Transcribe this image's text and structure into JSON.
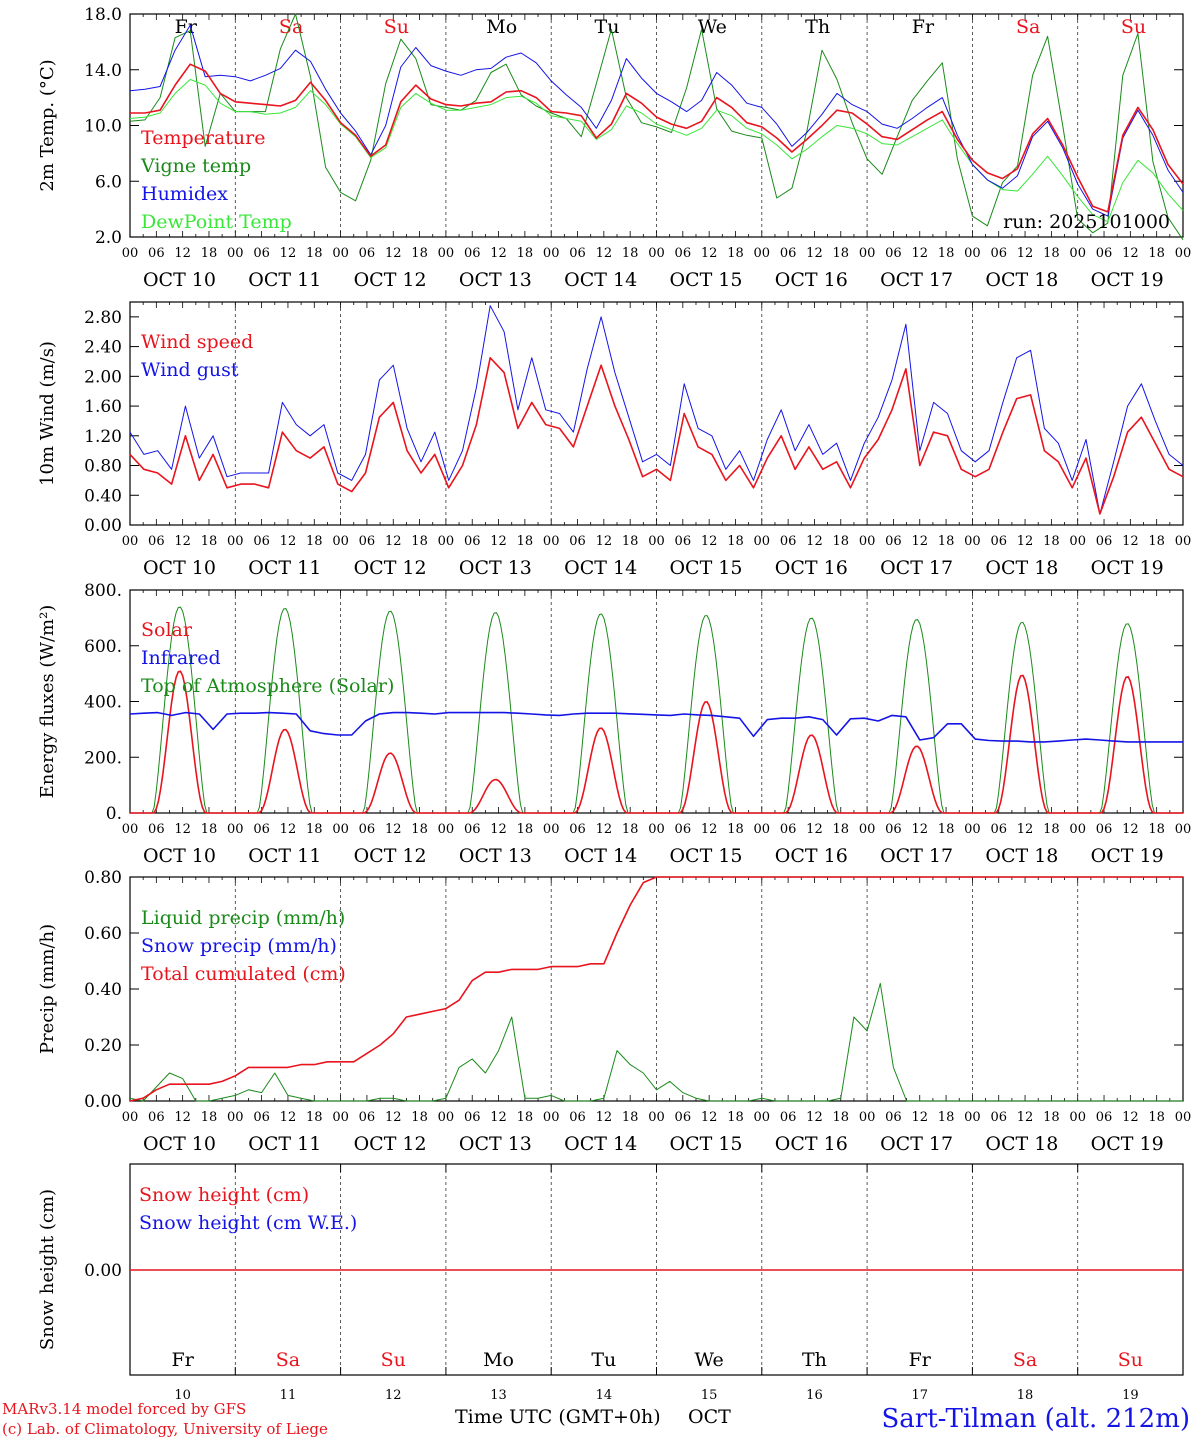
{
  "colors": {
    "red": "#e8141e",
    "green": "#1a8a1a",
    "blue": "#1414e6",
    "lime": "#39e639",
    "grey": "#555555"
  },
  "days": {
    "weekday_top": [
      "Fr",
      "Sa",
      "Su",
      "Mo",
      "Tu",
      "We",
      "Th",
      "Fr",
      "Sa",
      "Su"
    ],
    "weekend": [
      false,
      true,
      true,
      false,
      false,
      false,
      false,
      false,
      true,
      true
    ],
    "dates": [
      "OCT 10",
      "OCT 11",
      "OCT 12",
      "OCT 13",
      "OCT 14",
      "OCT 15",
      "OCT 16",
      "OCT 17",
      "OCT 18",
      "OCT 19"
    ],
    "day_numbers": [
      "10",
      "11",
      "12",
      "13",
      "14",
      "15",
      "16",
      "17",
      "18",
      "19"
    ],
    "hours": [
      "00",
      "06",
      "12",
      "18"
    ],
    "end_hour": "00"
  },
  "footer": {
    "credit1": "MARv3.14 model forced by GFS",
    "credit2": "(c) Lab. of Climatology, University of Liege",
    "xlabel": "Time UTC (GMT+0h)",
    "month": "OCT",
    "station": "Sart-Tilman (alt. 212m)"
  },
  "chart_data": [
    {
      "type": "line",
      "ylabel": "2m Temp. (°C)",
      "ylim": [
        2.0,
        18.0
      ],
      "yticks": [
        "2.0",
        "6.0",
        "10.0",
        "14.0",
        "18.0"
      ],
      "annotation": "run: 2025101000",
      "x_unit": "hours from Oct 10 00 UTC, 3-hourly, 0..240",
      "series": [
        {
          "name": "Temperature",
          "color": "red",
          "values": [
            10.9,
            10.9,
            11.1,
            12.9,
            14.4,
            13.9,
            12.3,
            11.7,
            11.6,
            11.5,
            11.4,
            11.8,
            13.1,
            11.8,
            10.2,
            9.3,
            7.8,
            8.6,
            11.7,
            12.9,
            11.9,
            11.5,
            11.4,
            11.6,
            11.7,
            12.4,
            12.5,
            12.0,
            11.0,
            10.9,
            10.7,
            9.1,
            10.1,
            12.3,
            11.6,
            10.6,
            10.1,
            9.8,
            10.3,
            12.0,
            11.3,
            10.2,
            9.9,
            9.1,
            8.1,
            9.0,
            10.0,
            11.1,
            10.9,
            10.1,
            9.2,
            9.0,
            9.7,
            10.4,
            11.0,
            9.0,
            7.5,
            6.6,
            6.2,
            6.9,
            9.4,
            10.5,
            8.6,
            6.3,
            4.2,
            3.8,
            9.3,
            11.3,
            9.7,
            7.2,
            5.8
          ]
        },
        {
          "name": "Vigne temp",
          "color": "green",
          "values": [
            10.3,
            10.4,
            12.0,
            16.3,
            16.8,
            8.5,
            12.3,
            11.0,
            11.0,
            11.0,
            15.5,
            18.0,
            13.5,
            7.0,
            5.2,
            4.6,
            7.5,
            13.0,
            16.2,
            14.8,
            11.5,
            11.3,
            11.1,
            11.8,
            13.8,
            14.4,
            12.2,
            11.4,
            10.9,
            10.5,
            9.2,
            13.0,
            16.9,
            12.0,
            10.2,
            9.9,
            9.5,
            12.7,
            16.9,
            11.2,
            9.6,
            9.3,
            9.1,
            4.8,
            5.5,
            9.6,
            15.4,
            13.3,
            10.2,
            7.6,
            6.5,
            9.2,
            11.8,
            13.2,
            14.5,
            7.6,
            3.5,
            2.8,
            5.9,
            7.1,
            13.6,
            16.4,
            10.0,
            3.3,
            2.3,
            3.0,
            13.6,
            16.6,
            7.4,
            3.4,
            1.8
          ]
        },
        {
          "name": "Humidex",
          "color": "blue",
          "values": [
            12.5,
            12.6,
            12.8,
            15.4,
            17.2,
            13.5,
            13.6,
            13.5,
            13.2,
            13.6,
            14.1,
            15.4,
            14.6,
            12.6,
            10.9,
            9.6,
            7.9,
            10.0,
            14.2,
            15.6,
            14.3,
            13.9,
            13.6,
            14.0,
            14.1,
            14.9,
            15.2,
            14.5,
            13.2,
            12.2,
            11.3,
            9.8,
            11.8,
            14.8,
            13.4,
            12.3,
            11.7,
            11.0,
            11.8,
            13.8,
            12.9,
            11.6,
            11.3,
            10.1,
            8.5,
            9.5,
            10.8,
            12.3,
            11.5,
            11.0,
            10.1,
            9.8,
            10.5,
            11.3,
            12.0,
            9.3,
            7.2,
            6.1,
            5.5,
            6.4,
            9.2,
            10.3,
            8.4,
            5.8,
            4.0,
            3.5,
            9.1,
            11.1,
            9.3,
            6.8,
            5.2
          ]
        },
        {
          "name": "DewPoint Temp",
          "color": "lime",
          "values": [
            10.5,
            10.6,
            10.9,
            12.3,
            13.3,
            12.9,
            11.6,
            11.0,
            11.0,
            10.8,
            10.9,
            11.3,
            12.5,
            11.5,
            10.1,
            9.2,
            7.7,
            8.4,
            11.3,
            12.3,
            11.6,
            11.1,
            11.1,
            11.3,
            11.5,
            12.0,
            12.1,
            11.6,
            10.7,
            10.5,
            10.3,
            9.0,
            9.7,
            11.4,
            10.9,
            10.1,
            9.7,
            9.3,
            9.8,
            11.1,
            10.7,
            9.8,
            9.4,
            8.6,
            7.6,
            8.3,
            9.2,
            10.0,
            9.8,
            9.4,
            8.7,
            8.6,
            9.2,
            9.8,
            10.4,
            8.7,
            7.2,
            6.1,
            5.4,
            5.3,
            6.5,
            7.8,
            6.4,
            4.9,
            3.6,
            3.1,
            5.9,
            7.5,
            6.6,
            5.1,
            3.9
          ]
        }
      ]
    },
    {
      "type": "line",
      "ylabel": "10m Wind (m/s)",
      "ylim": [
        0.0,
        3.0
      ],
      "yticks": [
        "0.00",
        "0.40",
        "0.80",
        "1.20",
        "1.60",
        "2.00",
        "2.40",
        "2.80"
      ],
      "x_unit": "hours from Oct 10 00 UTC, 3-hourly, 0..240",
      "series": [
        {
          "name": "Wind speed",
          "color": "red",
          "values": [
            0.95,
            0.75,
            0.7,
            0.55,
            1.2,
            0.6,
            0.95,
            0.5,
            0.55,
            0.55,
            0.5,
            1.25,
            1.0,
            0.9,
            1.05,
            0.55,
            0.45,
            0.7,
            1.45,
            1.65,
            1.0,
            0.7,
            0.95,
            0.5,
            0.8,
            1.35,
            2.25,
            2.05,
            1.3,
            1.65,
            1.35,
            1.3,
            1.05,
            1.6,
            2.15,
            1.6,
            1.15,
            0.65,
            0.75,
            0.6,
            1.5,
            1.05,
            0.95,
            0.6,
            0.8,
            0.5,
            0.9,
            1.2,
            0.75,
            1.05,
            0.75,
            0.85,
            0.5,
            0.9,
            1.15,
            1.55,
            2.1,
            0.8,
            1.25,
            1.2,
            0.75,
            0.65,
            0.75,
            1.25,
            1.7,
            1.75,
            1.0,
            0.85,
            0.5,
            0.9,
            0.15,
            0.65,
            1.25,
            1.45,
            1.1,
            0.75,
            0.65
          ]
        },
        {
          "name": "Wind gust",
          "color": "blue",
          "values": [
            1.25,
            0.95,
            1.0,
            0.75,
            1.6,
            0.9,
            1.2,
            0.65,
            0.7,
            0.7,
            0.7,
            1.65,
            1.35,
            1.2,
            1.35,
            0.7,
            0.6,
            0.95,
            1.95,
            2.15,
            1.3,
            0.85,
            1.25,
            0.6,
            1.0,
            1.85,
            2.95,
            2.6,
            1.55,
            2.25,
            1.55,
            1.5,
            1.25,
            2.1,
            2.8,
            2.05,
            1.45,
            0.85,
            0.95,
            0.8,
            1.9,
            1.3,
            1.2,
            0.75,
            1.0,
            0.6,
            1.15,
            1.55,
            1.0,
            1.35,
            0.95,
            1.1,
            0.6,
            1.1,
            1.45,
            1.95,
            2.7,
            1.0,
            1.65,
            1.5,
            1.0,
            0.85,
            1.0,
            1.65,
            2.25,
            2.35,
            1.3,
            1.1,
            0.6,
            1.15,
            0.15,
            0.85,
            1.6,
            1.9,
            1.4,
            0.95,
            0.8
          ]
        }
      ]
    },
    {
      "type": "line",
      "ylabel": "Energy fluxes (W/m²)",
      "ylim": [
        0,
        800
      ],
      "yticks": [
        "0.",
        "200.",
        "400.",
        "600.",
        "800."
      ],
      "x_unit": "hours from Oct 10 00 UTC, hourly solar shape, 3-hourly infrared",
      "series": [
        {
          "name": "Solar",
          "color": "red",
          "daily_peak": [
            510,
            300,
            215,
            120,
            305,
            400,
            280,
            240,
            495,
            490
          ]
        },
        {
          "name": "Infrared",
          "color": "blue",
          "values": [
            355,
            358,
            360,
            350,
            360,
            355,
            300,
            355,
            358,
            358,
            360,
            358,
            355,
            295,
            285,
            280,
            280,
            330,
            355,
            360,
            360,
            358,
            355,
            360,
            360,
            360,
            360,
            360,
            358,
            355,
            352,
            350,
            355,
            358,
            358,
            358,
            356,
            354,
            352,
            350,
            355,
            352,
            350,
            345,
            340,
            275,
            335,
            340,
            340,
            345,
            335,
            280,
            338,
            340,
            330,
            350,
            345,
            262,
            270,
            320,
            320,
            265,
            260,
            258,
            258,
            255,
            255,
            258,
            262,
            265,
            262,
            258,
            255,
            255,
            255,
            255,
            255
          ]
        },
        {
          "name": "Top of Atmosphere (Solar)",
          "color": "green",
          "daily_peak": [
            740,
            735,
            725,
            720,
            715,
            710,
            700,
            695,
            685,
            680
          ]
        }
      ]
    },
    {
      "type": "line",
      "ylabel": "Precip (mm/h)",
      "ylim": [
        0.0,
        0.8
      ],
      "yticks": [
        "0.00",
        "0.20",
        "0.40",
        "0.60",
        "0.80"
      ],
      "x_unit": "hours from Oct 10 00 UTC, 3-hourly, 0..240",
      "series": [
        {
          "name": "Liquid precip (mm/h)",
          "color": "green",
          "values": [
            0.01,
            0.0,
            0.05,
            0.1,
            0.08,
            0.0,
            0.0,
            0.01,
            0.02,
            0.04,
            0.03,
            0.1,
            0.02,
            0.01,
            0.0,
            0.0,
            0.0,
            0.0,
            0.0,
            0.01,
            0.01,
            0.0,
            0.0,
            0.0,
            0.01,
            0.12,
            0.15,
            0.1,
            0.18,
            0.3,
            0.01,
            0.01,
            0.02,
            0.0,
            0.0,
            0.0,
            0.01,
            0.18,
            0.13,
            0.1,
            0.04,
            0.07,
            0.03,
            0.01,
            0.0,
            0.0,
            0.0,
            0.0,
            0.01,
            0.0,
            0.0,
            0.0,
            0.0,
            0.0,
            0.01,
            0.3,
            0.25,
            0.42,
            0.12,
            0.0,
            0.0,
            0.0,
            0.0,
            0.0,
            0.0,
            0.0,
            0.0,
            0.0,
            0.0,
            0.0,
            0.0,
            0.0,
            0.0,
            0.0,
            0.0,
            0.0,
            0.0,
            0.0,
            0.0,
            0.0,
            0.0
          ]
        },
        {
          "name": "Snow precip (mm/h)",
          "color": "blue",
          "values": []
        },
        {
          "name": "Total cumulated (cm)",
          "color": "red",
          "values": [
            0.0,
            0.01,
            0.04,
            0.06,
            0.06,
            0.06,
            0.06,
            0.07,
            0.09,
            0.12,
            0.12,
            0.12,
            0.12,
            0.13,
            0.13,
            0.14,
            0.14,
            0.14,
            0.17,
            0.2,
            0.24,
            0.3,
            0.31,
            0.32,
            0.33,
            0.36,
            0.43,
            0.46,
            0.46,
            0.47,
            0.47,
            0.47,
            0.48,
            0.48,
            0.48,
            0.49,
            0.49,
            0.6,
            0.7,
            0.78,
            0.8,
            0.8,
            0.8,
            0.8,
            0.8,
            0.8,
            0.8,
            0.8,
            0.8,
            0.8,
            0.8,
            0.8,
            0.8,
            0.8,
            0.8,
            0.8,
            0.8,
            0.8,
            0.8,
            0.8,
            0.8,
            0.8,
            0.8,
            0.8,
            0.8,
            0.8,
            0.8,
            0.8,
            0.8,
            0.8,
            0.8,
            0.8,
            0.8,
            0.8,
            0.8,
            0.8,
            0.8,
            0.8,
            0.8,
            0.8,
            0.8
          ]
        }
      ]
    },
    {
      "type": "line",
      "ylabel": "Snow height (cm)",
      "yticks": [
        "0.00"
      ],
      "series": [
        {
          "name": "Snow height (cm)",
          "color": "red",
          "values": [
            0.0
          ]
        },
        {
          "name": "Snow height (cm W.E.)",
          "color": "blue",
          "values": []
        }
      ]
    }
  ]
}
